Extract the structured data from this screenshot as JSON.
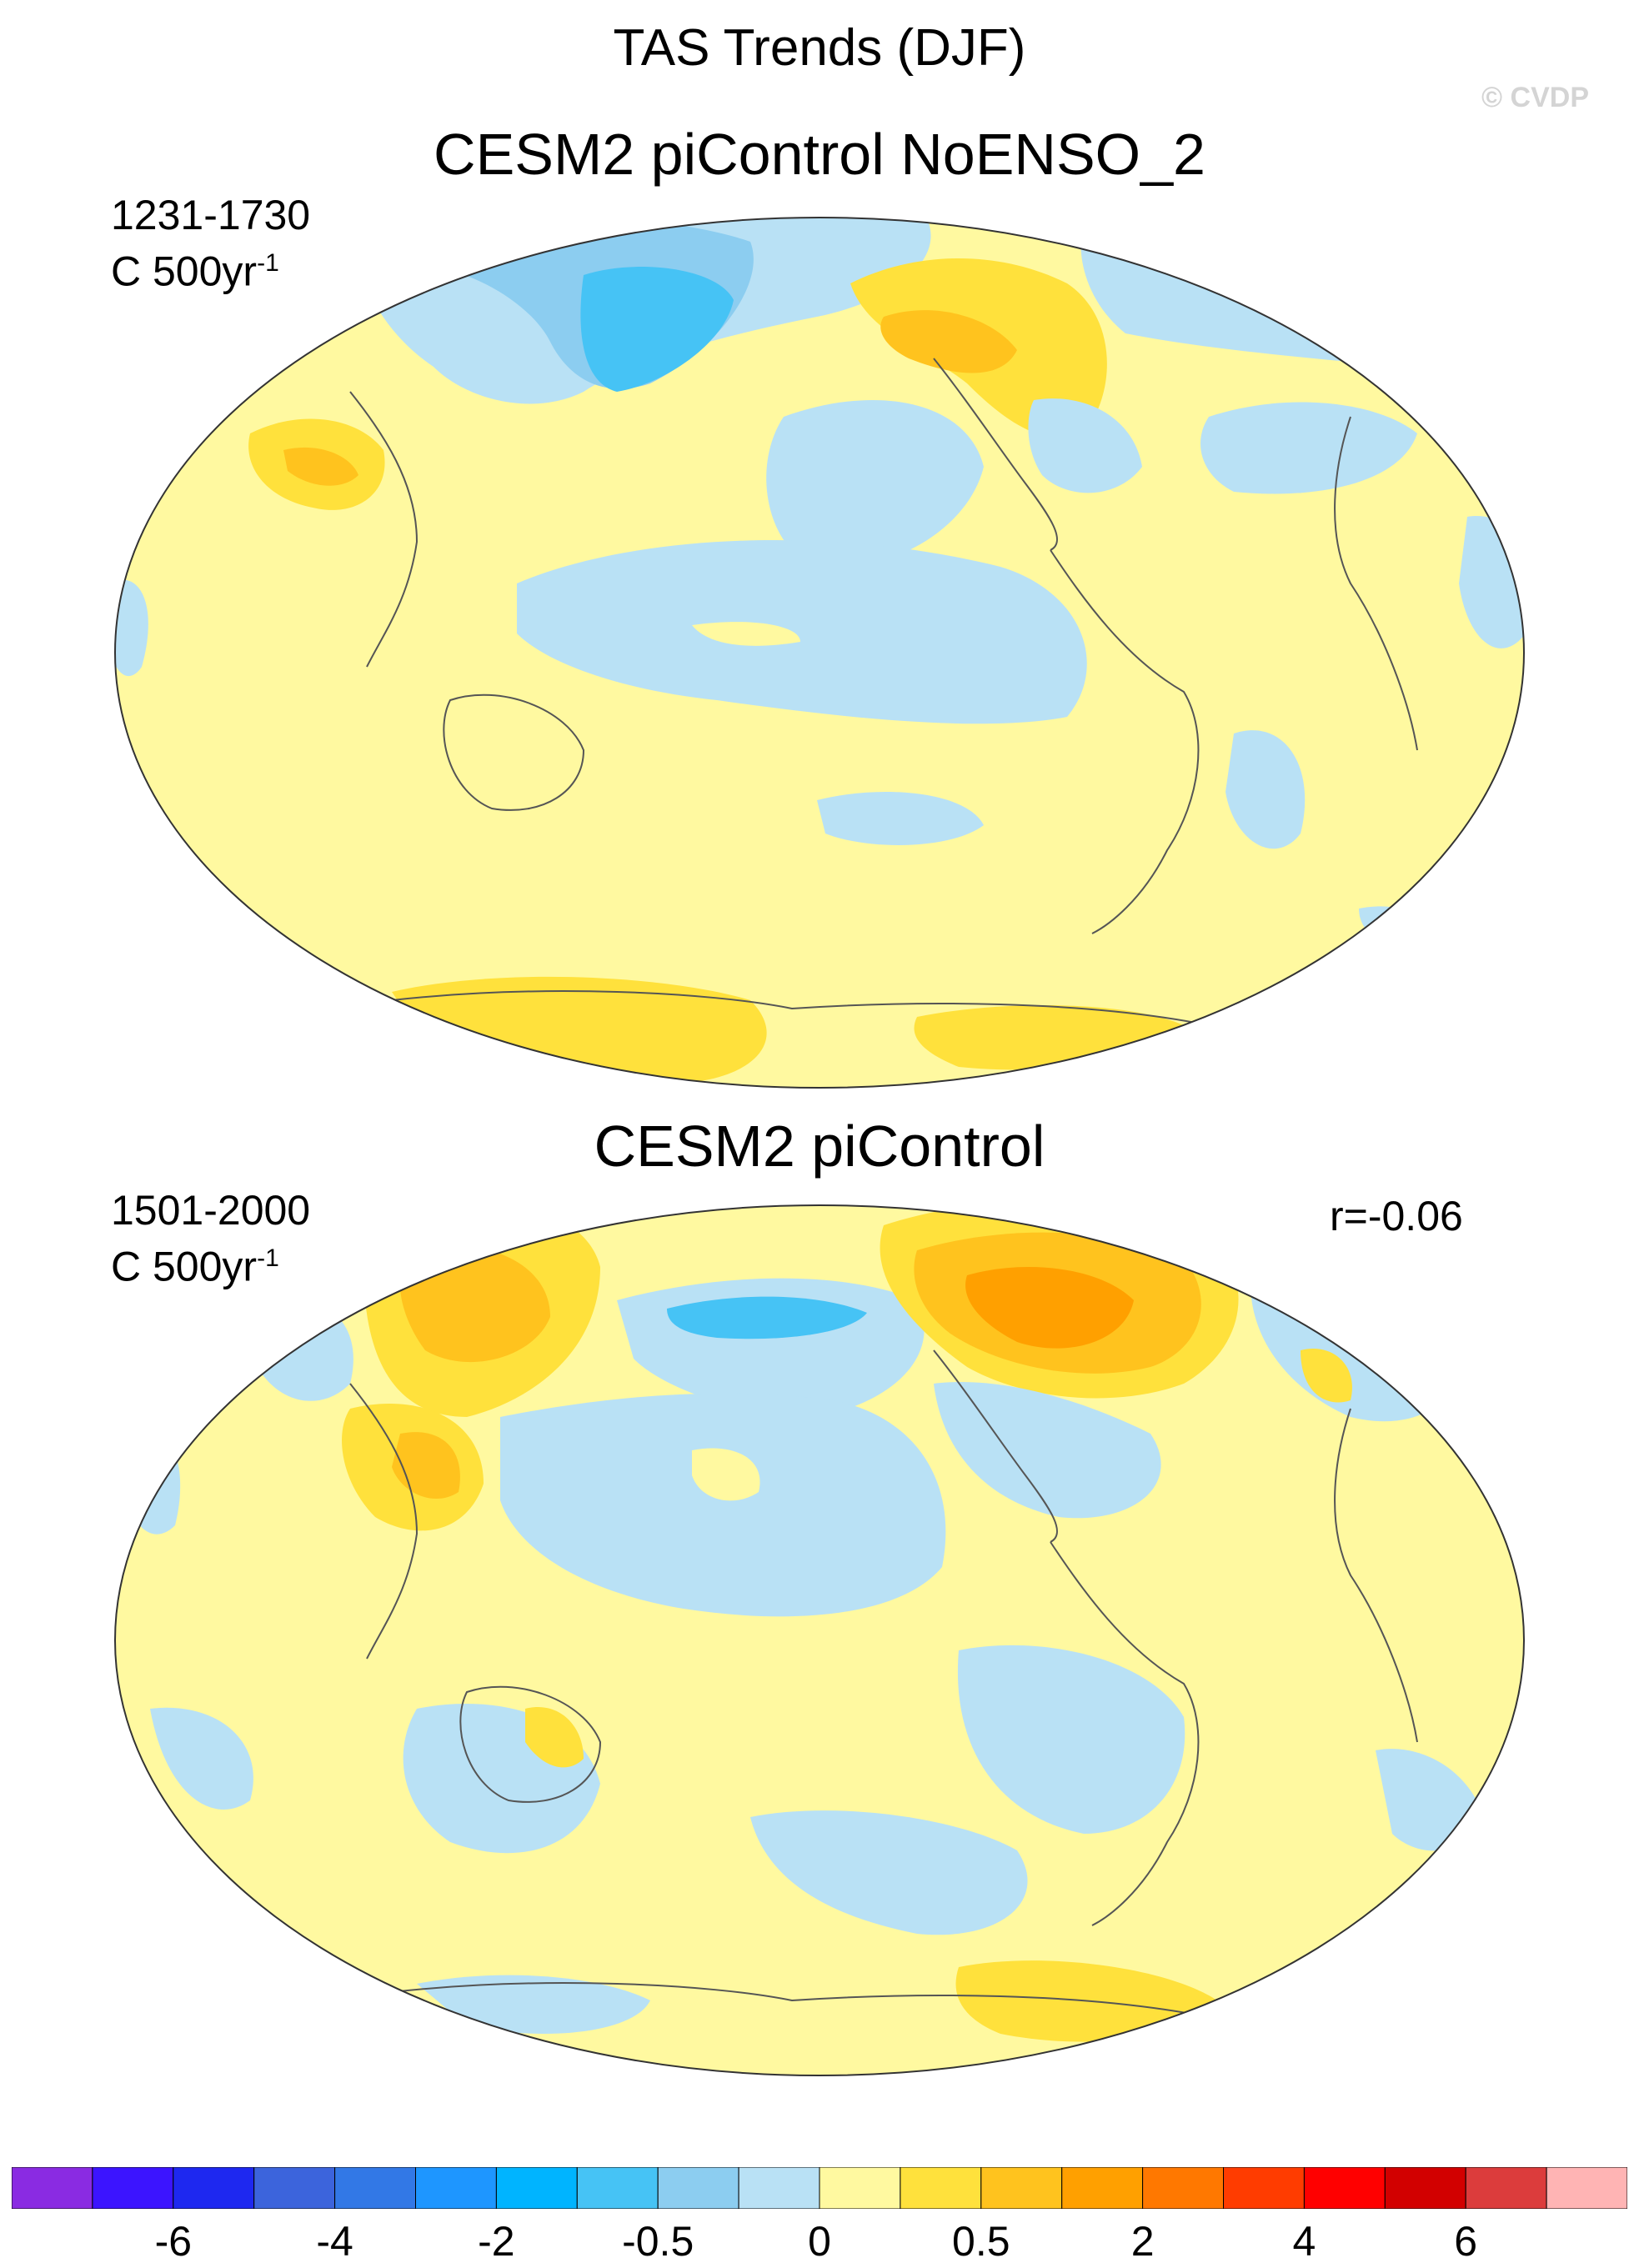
{
  "figure": {
    "title": "TAS Trends (DJF)",
    "watermark": "© CVDP"
  },
  "panels": [
    {
      "title": "CESM2 piControl NoENSO_2",
      "period": "1231-1730",
      "units": "C 500yr",
      "units_exponent": "-1",
      "correlation": ""
    },
    {
      "title": "CESM2 piControl",
      "period": "1501-2000",
      "units": "C 500yr",
      "units_exponent": "-1",
      "correlation": "r=-0.06"
    }
  ],
  "colorbar": {
    "colors": [
      "#8a2be2",
      "#3c14ff",
      "#1e28f0",
      "#3c64dc",
      "#3278e6",
      "#1e96ff",
      "#00b4ff",
      "#46c3f5",
      "#8ccdf0",
      "#b9e1f5",
      "#fff9a0",
      "#ffe13c",
      "#ffc31e",
      "#ffa000",
      "#ff7800",
      "#ff3c00",
      "#ff0000",
      "#d20000",
      "#dc3c3c",
      "#ffb4b4"
    ],
    "tick_labels": [
      "-6",
      "-4",
      "-2",
      "-0.5",
      "0",
      "0.5",
      "2",
      "4",
      "6"
    ]
  },
  "chart_data": {
    "type": "heatmap",
    "projection": "Robinson-like, Pacific-centered global map",
    "field": "surface air temperature trend, DJF",
    "units": "C 500yr^-1",
    "color_levels_labeled": [
      -6,
      -4,
      -2,
      -0.5,
      0,
      0.5,
      2,
      4,
      6
    ],
    "panels": [
      {
        "title": "CESM2 piControl NoENSO_2",
        "years": "1231-1730",
        "dominant_range": [
          -2,
          2
        ]
      },
      {
        "title": "CESM2 piControl",
        "years": "1501-2000",
        "dominant_range": [
          -2,
          2
        ],
        "pattern_correlation": -0.06
      }
    ]
  }
}
